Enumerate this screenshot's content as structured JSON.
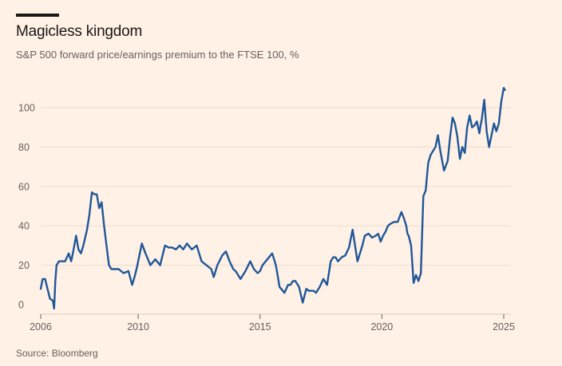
{
  "header": {
    "title": "Magicless kingdom",
    "subtitle": "S&P 500 forward price/earnings premium to the FTSE 100, %"
  },
  "footer": {
    "source": "Source: Bloomberg"
  },
  "chart_data": {
    "type": "line",
    "title": "Magicless kingdom",
    "subtitle": "S&P 500 forward price/earnings premium to the FTSE 100, %",
    "xlabel": "",
    "ylabel": "",
    "xlim": [
      2006,
      2025.1
    ],
    "ylim": [
      -3,
      110
    ],
    "x_ticks": [
      2006,
      2010,
      2015,
      2020,
      2025
    ],
    "y_ticks": [
      0,
      20,
      40,
      60,
      80,
      100
    ],
    "grid": true,
    "legend": "none",
    "line_color": "#1f5799",
    "series": [
      {
        "x": [
          2006.0,
          2006.08,
          2006.18,
          2006.28,
          2006.38,
          2006.5,
          2006.55,
          2006.6,
          2006.65,
          2006.75,
          2006.85,
          2007.0,
          2007.15,
          2007.25,
          2007.35,
          2007.45,
          2007.55,
          2007.65,
          2007.75,
          2007.9,
          2008.0,
          2008.1,
          2008.2,
          2008.3,
          2008.4,
          2008.5,
          2008.6,
          2008.7,
          2008.8,
          2008.9,
          2009.0,
          2009.2,
          2009.4,
          2009.6,
          2009.75,
          2009.85,
          2009.95,
          2010.05,
          2010.15,
          2010.3,
          2010.5,
          2010.7,
          2010.9,
          2011.1,
          2011.25,
          2011.4,
          2011.55,
          2011.7,
          2011.85,
          2012.0,
          2012.2,
          2012.4,
          2012.6,
          2012.8,
          2013.0,
          2013.1,
          2013.25,
          2013.45,
          2013.6,
          2013.75,
          2013.9,
          2014.0,
          2014.2,
          2014.4,
          2014.6,
          2014.75,
          2014.9,
          2015.0,
          2015.1,
          2015.3,
          2015.5,
          2015.65,
          2015.8,
          2016.0,
          2016.15,
          2016.25,
          2016.35,
          2016.45,
          2016.6,
          2016.75,
          2016.9,
          2017.0,
          2017.1,
          2017.2,
          2017.3,
          2017.45,
          2017.6,
          2017.75,
          2017.9,
          2018.0,
          2018.1,
          2018.2,
          2018.35,
          2018.5,
          2018.65,
          2018.8,
          2019.0,
          2019.1,
          2019.2,
          2019.3,
          2019.45,
          2019.6,
          2019.75,
          2019.85,
          2019.95,
          2020.05,
          2020.15,
          2020.25,
          2020.35,
          2020.5,
          2020.65,
          2020.8,
          2020.9,
          2021.0,
          2021.05,
          2021.1,
          2021.2,
          2021.3,
          2021.4,
          2021.5,
          2021.6,
          2021.7,
          2021.8,
          2021.9,
          2022.0,
          2022.1,
          2022.2,
          2022.3,
          2022.4,
          2022.55,
          2022.7,
          2022.8,
          2022.9,
          2023.0,
          2023.1,
          2023.2,
          2023.3,
          2023.4,
          2023.5,
          2023.6,
          2023.7,
          2023.8,
          2023.9,
          2024.0,
          2024.05,
          2024.1,
          2024.2,
          2024.3,
          2024.4,
          2024.5,
          2024.6,
          2024.7,
          2024.8,
          2024.9,
          2025.0,
          2025.05
        ],
        "y": [
          8,
          13,
          13,
          8,
          3,
          2,
          -2,
          12,
          20,
          22,
          22,
          22,
          26,
          22,
          28,
          35,
          28,
          26,
          30,
          38,
          46,
          57,
          56,
          56,
          49,
          52,
          40,
          30,
          20,
          18,
          18,
          18,
          16,
          17,
          10,
          14,
          19,
          25,
          31,
          26,
          20,
          23,
          20,
          30,
          29,
          29,
          28,
          30,
          28,
          31,
          28,
          30,
          22,
          20,
          18,
          14,
          20,
          25,
          27,
          22,
          18,
          17,
          13,
          17,
          22,
          18,
          16,
          17,
          20,
          23,
          26,
          20,
          9,
          6,
          10,
          10,
          12,
          12,
          9,
          1,
          8,
          7,
          7,
          7,
          6,
          9,
          13,
          10,
          22,
          24,
          24,
          22,
          24,
          25,
          29,
          38,
          22,
          26,
          30,
          35,
          36,
          34,
          35,
          36,
          32,
          35,
          37,
          40,
          41,
          42,
          42,
          47,
          44,
          40,
          36,
          35,
          30,
          11,
          15,
          12,
          16,
          55,
          58,
          72,
          76,
          78,
          80,
          86,
          78,
          68,
          73,
          85,
          95,
          92,
          85,
          74,
          80,
          77,
          90,
          96,
          90,
          91,
          93,
          87,
          91,
          94,
          104,
          88,
          80,
          86,
          92,
          88,
          92,
          103,
          110,
          109
        ]
      }
    ]
  }
}
